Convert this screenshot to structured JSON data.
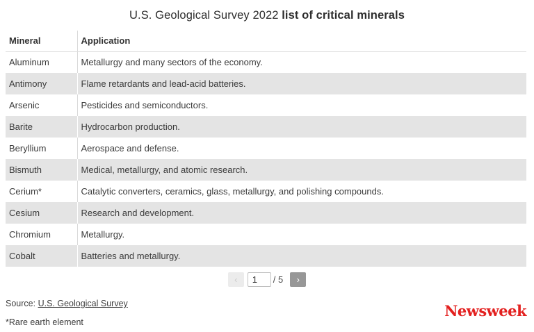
{
  "title": {
    "regular": "U.S. Geological Survey 2022 ",
    "bold": "list of critical minerals"
  },
  "table": {
    "columns": [
      "Mineral",
      "Application"
    ],
    "rows": [
      {
        "mineral": "Aluminum",
        "application": "Metallurgy and many sectors of the economy."
      },
      {
        "mineral": "Antimony",
        "application": "Flame retardants and lead-acid batteries."
      },
      {
        "mineral": "Arsenic",
        "application": "Pesticides and semiconductors."
      },
      {
        "mineral": "Barite",
        "application": "Hydrocarbon production."
      },
      {
        "mineral": "Beryllium",
        "application": "Aerospace and defense."
      },
      {
        "mineral": "Bismuth",
        "application": "Medical, metallurgy, and atomic research."
      },
      {
        "mineral": "Cerium*",
        "application": "Catalytic converters, ceramics, glass, metallurgy, and polishing compounds."
      },
      {
        "mineral": "Cesium",
        "application": "Research and development."
      },
      {
        "mineral": "Chromium",
        "application": "Metallurgy."
      },
      {
        "mineral": "Cobalt",
        "application": "Batteries and metallurgy."
      }
    ]
  },
  "pagination": {
    "prev_icon": "‹",
    "current_page": "1",
    "total_label": "/ 5",
    "next_icon": "›"
  },
  "footer": {
    "source_prefix": "Source: ",
    "source_link": "U.S. Geological Survey",
    "note": "*Rare earth element",
    "brand": "Newsweek"
  },
  "colors": {
    "brand_red": "#e3201f",
    "row_alt_gray": "#e4e4e4",
    "divider_gray": "#dadada",
    "text_dark": "#3b3b3b",
    "next_button_gray": "#979797",
    "prev_button_gray": "#ececec"
  }
}
